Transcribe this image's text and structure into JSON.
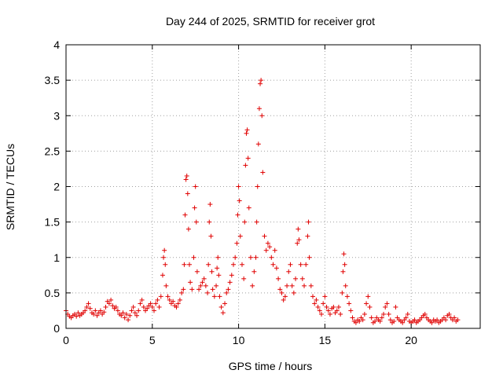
{
  "chart_data": {
    "type": "scatter",
    "title": "Day 244 of 2025, SRMTID for receiver grot",
    "xlabel": "GPS time / hours",
    "ylabel": "SRMTID / TECUs",
    "xlim": [
      0,
      24
    ],
    "ylim": [
      0,
      4
    ],
    "x_ticks": [
      {
        "value": 0,
        "label": "0"
      },
      {
        "value": 5,
        "label": "5"
      },
      {
        "value": 10,
        "label": "10"
      },
      {
        "value": 15,
        "label": "15"
      },
      {
        "value": 20,
        "label": "20"
      }
    ],
    "y_ticks": [
      {
        "value": 0,
        "label": "0"
      },
      {
        "value": 0.5,
        "label": "0.5"
      },
      {
        "value": 1,
        "label": "1"
      },
      {
        "value": 1.5,
        "label": "1.5"
      },
      {
        "value": 2,
        "label": "2"
      },
      {
        "value": 2.5,
        "label": "2.5"
      },
      {
        "value": 3,
        "label": "3"
      },
      {
        "value": 3.5,
        "label": "3.5"
      },
      {
        "value": 4,
        "label": "4"
      }
    ],
    "grid": true,
    "marker": "+",
    "color": "#e00000",
    "series": [
      {
        "name": "SRMTID",
        "points": [
          [
            0.0,
            0.25
          ],
          [
            0.1,
            0.2
          ],
          [
            0.2,
            0.17
          ],
          [
            0.3,
            0.15
          ],
          [
            0.4,
            0.18
          ],
          [
            0.5,
            0.2
          ],
          [
            0.6,
            0.17
          ],
          [
            0.7,
            0.22
          ],
          [
            0.8,
            0.18
          ],
          [
            0.9,
            0.2
          ],
          [
            1.0,
            0.22
          ],
          [
            1.1,
            0.25
          ],
          [
            1.2,
            0.3
          ],
          [
            1.3,
            0.35
          ],
          [
            1.4,
            0.28
          ],
          [
            1.5,
            0.22
          ],
          [
            1.6,
            0.2
          ],
          [
            1.7,
            0.25
          ],
          [
            1.8,
            0.18
          ],
          [
            1.9,
            0.22
          ],
          [
            2.0,
            0.25
          ],
          [
            2.1,
            0.2
          ],
          [
            2.2,
            0.23
          ],
          [
            2.3,
            0.3
          ],
          [
            2.4,
            0.38
          ],
          [
            2.5,
            0.35
          ],
          [
            2.6,
            0.4
          ],
          [
            2.7,
            0.32
          ],
          [
            2.8,
            0.28
          ],
          [
            2.9,
            0.3
          ],
          [
            3.0,
            0.25
          ],
          [
            3.1,
            0.2
          ],
          [
            3.2,
            0.18
          ],
          [
            3.3,
            0.22
          ],
          [
            3.4,
            0.15
          ],
          [
            3.5,
            0.2
          ],
          [
            3.6,
            0.12
          ],
          [
            3.7,
            0.18
          ],
          [
            3.8,
            0.25
          ],
          [
            3.9,
            0.3
          ],
          [
            4.0,
            0.22
          ],
          [
            4.1,
            0.18
          ],
          [
            4.2,
            0.25
          ],
          [
            4.3,
            0.35
          ],
          [
            4.4,
            0.4
          ],
          [
            4.5,
            0.3
          ],
          [
            4.6,
            0.25
          ],
          [
            4.7,
            0.28
          ],
          [
            4.8,
            0.32
          ],
          [
            4.9,
            0.35
          ],
          [
            5.0,
            0.3
          ],
          [
            5.1,
            0.25
          ],
          [
            5.2,
            0.35
          ],
          [
            5.3,
            0.4
          ],
          [
            5.4,
            0.3
          ],
          [
            5.5,
            0.45
          ],
          [
            5.6,
            0.75
          ],
          [
            5.65,
            1.0
          ],
          [
            5.7,
            1.1
          ],
          [
            5.75,
            0.9
          ],
          [
            5.8,
            0.6
          ],
          [
            5.9,
            0.45
          ],
          [
            6.0,
            0.4
          ],
          [
            6.1,
            0.35
          ],
          [
            6.2,
            0.38
          ],
          [
            6.3,
            0.32
          ],
          [
            6.4,
            0.3
          ],
          [
            6.5,
            0.35
          ],
          [
            6.6,
            0.4
          ],
          [
            6.7,
            0.5
          ],
          [
            6.8,
            0.55
          ],
          [
            6.85,
            0.9
          ],
          [
            6.9,
            1.6
          ],
          [
            6.95,
            2.1
          ],
          [
            7.0,
            2.15
          ],
          [
            7.05,
            1.9
          ],
          [
            7.1,
            1.4
          ],
          [
            7.15,
            0.9
          ],
          [
            7.2,
            0.65
          ],
          [
            7.3,
            0.55
          ],
          [
            7.4,
            1.0
          ],
          [
            7.45,
            1.7
          ],
          [
            7.5,
            2.0
          ],
          [
            7.55,
            1.5
          ],
          [
            7.6,
            0.8
          ],
          [
            7.7,
            0.55
          ],
          [
            7.8,
            0.6
          ],
          [
            7.9,
            0.65
          ],
          [
            8.0,
            0.7
          ],
          [
            8.1,
            0.6
          ],
          [
            8.2,
            0.5
          ],
          [
            8.25,
            0.9
          ],
          [
            8.3,
            1.5
          ],
          [
            8.35,
            1.75
          ],
          [
            8.4,
            1.3
          ],
          [
            8.45,
            0.8
          ],
          [
            8.5,
            0.55
          ],
          [
            8.6,
            0.45
          ],
          [
            8.7,
            0.6
          ],
          [
            8.75,
            0.85
          ],
          [
            8.8,
            1.0
          ],
          [
            8.85,
            0.75
          ],
          [
            8.9,
            0.45
          ],
          [
            9.0,
            0.3
          ],
          [
            9.1,
            0.22
          ],
          [
            9.2,
            0.35
          ],
          [
            9.3,
            0.5
          ],
          [
            9.4,
            0.55
          ],
          [
            9.5,
            0.65
          ],
          [
            9.6,
            0.75
          ],
          [
            9.7,
            0.9
          ],
          [
            9.8,
            1.0
          ],
          [
            9.9,
            1.2
          ],
          [
            9.95,
            1.6
          ],
          [
            10.0,
            2.0
          ],
          [
            10.05,
            1.8
          ],
          [
            10.1,
            1.3
          ],
          [
            10.2,
            0.9
          ],
          [
            10.3,
            0.7
          ],
          [
            10.35,
            1.5
          ],
          [
            10.4,
            2.3
          ],
          [
            10.45,
            2.75
          ],
          [
            10.5,
            2.8
          ],
          [
            10.55,
            2.4
          ],
          [
            10.6,
            1.7
          ],
          [
            10.7,
            1.0
          ],
          [
            10.8,
            0.6
          ],
          [
            10.9,
            0.8
          ],
          [
            11.0,
            1.0
          ],
          [
            11.05,
            1.5
          ],
          [
            11.1,
            2.0
          ],
          [
            11.15,
            2.6
          ],
          [
            11.2,
            3.1
          ],
          [
            11.25,
            3.45
          ],
          [
            11.3,
            3.5
          ],
          [
            11.35,
            3.0
          ],
          [
            11.4,
            2.2
          ],
          [
            11.5,
            1.3
          ],
          [
            11.6,
            1.1
          ],
          [
            11.7,
            1.2
          ],
          [
            11.8,
            1.15
          ],
          [
            11.9,
            1.0
          ],
          [
            12.0,
            0.9
          ],
          [
            12.1,
            1.1
          ],
          [
            12.2,
            0.85
          ],
          [
            12.3,
            0.7
          ],
          [
            12.4,
            0.55
          ],
          [
            12.5,
            0.5
          ],
          [
            12.6,
            0.4
          ],
          [
            12.7,
            0.45
          ],
          [
            12.8,
            0.6
          ],
          [
            12.9,
            0.8
          ],
          [
            13.0,
            0.9
          ],
          [
            13.1,
            0.6
          ],
          [
            13.2,
            0.5
          ],
          [
            13.3,
            0.7
          ],
          [
            13.4,
            1.2
          ],
          [
            13.45,
            1.4
          ],
          [
            13.5,
            1.25
          ],
          [
            13.6,
            0.9
          ],
          [
            13.7,
            0.7
          ],
          [
            13.8,
            0.6
          ],
          [
            13.9,
            0.9
          ],
          [
            14.0,
            1.3
          ],
          [
            14.05,
            1.5
          ],
          [
            14.1,
            1.0
          ],
          [
            14.2,
            0.6
          ],
          [
            14.3,
            0.45
          ],
          [
            14.4,
            0.35
          ],
          [
            14.5,
            0.4
          ],
          [
            14.6,
            0.3
          ],
          [
            14.7,
            0.25
          ],
          [
            14.8,
            0.2
          ],
          [
            14.9,
            0.35
          ],
          [
            15.0,
            0.45
          ],
          [
            15.1,
            0.3
          ],
          [
            15.2,
            0.25
          ],
          [
            15.3,
            0.2
          ],
          [
            15.4,
            0.28
          ],
          [
            15.5,
            0.3
          ],
          [
            15.6,
            0.22
          ],
          [
            15.7,
            0.25
          ],
          [
            15.8,
            0.3
          ],
          [
            15.9,
            0.2
          ],
          [
            16.0,
            0.5
          ],
          [
            16.05,
            0.8
          ],
          [
            16.1,
            1.05
          ],
          [
            16.15,
            0.9
          ],
          [
            16.2,
            0.6
          ],
          [
            16.3,
            0.45
          ],
          [
            16.4,
            0.35
          ],
          [
            16.5,
            0.25
          ],
          [
            16.6,
            0.15
          ],
          [
            16.7,
            0.1
          ],
          [
            16.8,
            0.08
          ],
          [
            16.9,
            0.12
          ],
          [
            17.0,
            0.1
          ],
          [
            17.1,
            0.15
          ],
          [
            17.2,
            0.12
          ],
          [
            17.3,
            0.2
          ],
          [
            17.4,
            0.35
          ],
          [
            17.5,
            0.45
          ],
          [
            17.6,
            0.3
          ],
          [
            17.7,
            0.15
          ],
          [
            17.8,
            0.08
          ],
          [
            17.9,
            0.1
          ],
          [
            18.0,
            0.15
          ],
          [
            18.1,
            0.12
          ],
          [
            18.2,
            0.1
          ],
          [
            18.3,
            0.15
          ],
          [
            18.4,
            0.2
          ],
          [
            18.5,
            0.3
          ],
          [
            18.6,
            0.35
          ],
          [
            18.7,
            0.2
          ],
          [
            18.8,
            0.12
          ],
          [
            18.9,
            0.08
          ],
          [
            19.0,
            0.1
          ],
          [
            19.1,
            0.3
          ],
          [
            19.2,
            0.15
          ],
          [
            19.3,
            0.12
          ],
          [
            19.4,
            0.1
          ],
          [
            19.5,
            0.08
          ],
          [
            19.6,
            0.12
          ],
          [
            19.7,
            0.15
          ],
          [
            19.8,
            0.2
          ],
          [
            19.9,
            0.1
          ],
          [
            20.0,
            0.08
          ],
          [
            20.1,
            0.1
          ],
          [
            20.2,
            0.12
          ],
          [
            20.3,
            0.08
          ],
          [
            20.4,
            0.1
          ],
          [
            20.5,
            0.12
          ],
          [
            20.6,
            0.15
          ],
          [
            20.7,
            0.18
          ],
          [
            20.8,
            0.2
          ],
          [
            20.9,
            0.15
          ],
          [
            21.0,
            0.12
          ],
          [
            21.1,
            0.1
          ],
          [
            21.2,
            0.08
          ],
          [
            21.3,
            0.12
          ],
          [
            21.4,
            0.1
          ],
          [
            21.5,
            0.12
          ],
          [
            21.6,
            0.08
          ],
          [
            21.7,
            0.1
          ],
          [
            21.8,
            0.12
          ],
          [
            21.9,
            0.15
          ],
          [
            22.0,
            0.12
          ],
          [
            22.1,
            0.18
          ],
          [
            22.2,
            0.2
          ],
          [
            22.3,
            0.15
          ],
          [
            22.4,
            0.12
          ],
          [
            22.5,
            0.15
          ],
          [
            22.6,
            0.1
          ],
          [
            22.7,
            0.12
          ]
        ]
      }
    ]
  }
}
